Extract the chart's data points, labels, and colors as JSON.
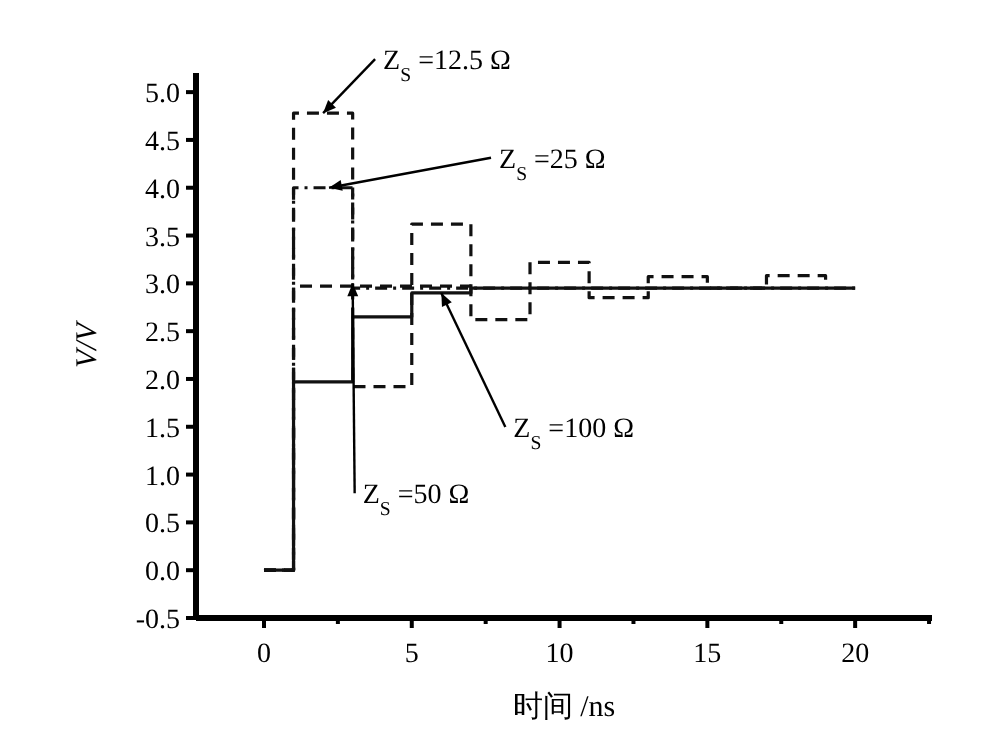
{
  "chart_data": {
    "type": "step",
    "xlabel": "时间 /ns",
    "ylabel": "V/V",
    "xlim": [
      -2.3,
      22.6
    ],
    "ylim": [
      -0.5,
      5.2
    ],
    "xticks": [
      0,
      {
        "value": 2.5,
        "label": null
      },
      5,
      {
        "value": 7.5,
        "label": null
      },
      10,
      {
        "value": 12.5,
        "label": null
      },
      15,
      {
        "value": 17.5,
        "label": null
      },
      20,
      {
        "value": 22.5,
        "label": null
      }
    ],
    "yticks": [
      -0.5,
      {
        "value": 0,
        "label": "0.0"
      },
      0.5,
      {
        "value": 1,
        "label": "1.0"
      },
      1.5,
      {
        "value": 2,
        "label": "2.0"
      },
      2.5,
      {
        "value": 3,
        "label": "3.0"
      },
      3.5,
      {
        "value": 4,
        "label": "4.0"
      },
      4.5,
      {
        "value": 5,
        "label": "5.0"
      }
    ],
    "grid": false,
    "series": [
      {
        "color": "#111111",
        "line_style": "dashed",
        "x": [
          0,
          1,
          3,
          5,
          7,
          9,
          11,
          13,
          15,
          17,
          19
        ],
        "values": [
          0,
          4.78,
          1.92,
          3.62,
          2.62,
          3.22,
          2.85,
          3.07,
          2.95,
          3.08,
          2.95
        ]
      },
      {
        "color": "#111111",
        "line_style": "dotted",
        "x": [
          0,
          1,
          3,
          20
        ],
        "values": [
          0,
          4,
          2.95,
          2.95
        ]
      },
      {
        "color": "#111111",
        "line_style": "dashed",
        "x": [
          0,
          1,
          7
        ],
        "values": [
          0,
          2.97,
          2.97
        ]
      },
      {
        "color": "#111111",
        "line_style": "solid",
        "x": [
          0,
          1,
          3,
          5,
          7,
          20
        ],
        "values": [
          0,
          1.97,
          2.65,
          2.9,
          2.95,
          2.95
        ]
      }
    ],
    "annotations": [
      {
        "text": "Z$_{S}$ =12.5 Ω",
        "x": 2,
        "y": 4.78
      },
      {
        "text": "Z$_{S}$ =25 Ω",
        "x": 2.2,
        "y": 4
      },
      {
        "text": "Z$_{S}$ =100 Ω",
        "x": 6,
        "y": 2.9
      },
      {
        "text": "Z$_{S}$ =50 Ω",
        "x": 3,
        "y": 3
      }
    ]
  }
}
